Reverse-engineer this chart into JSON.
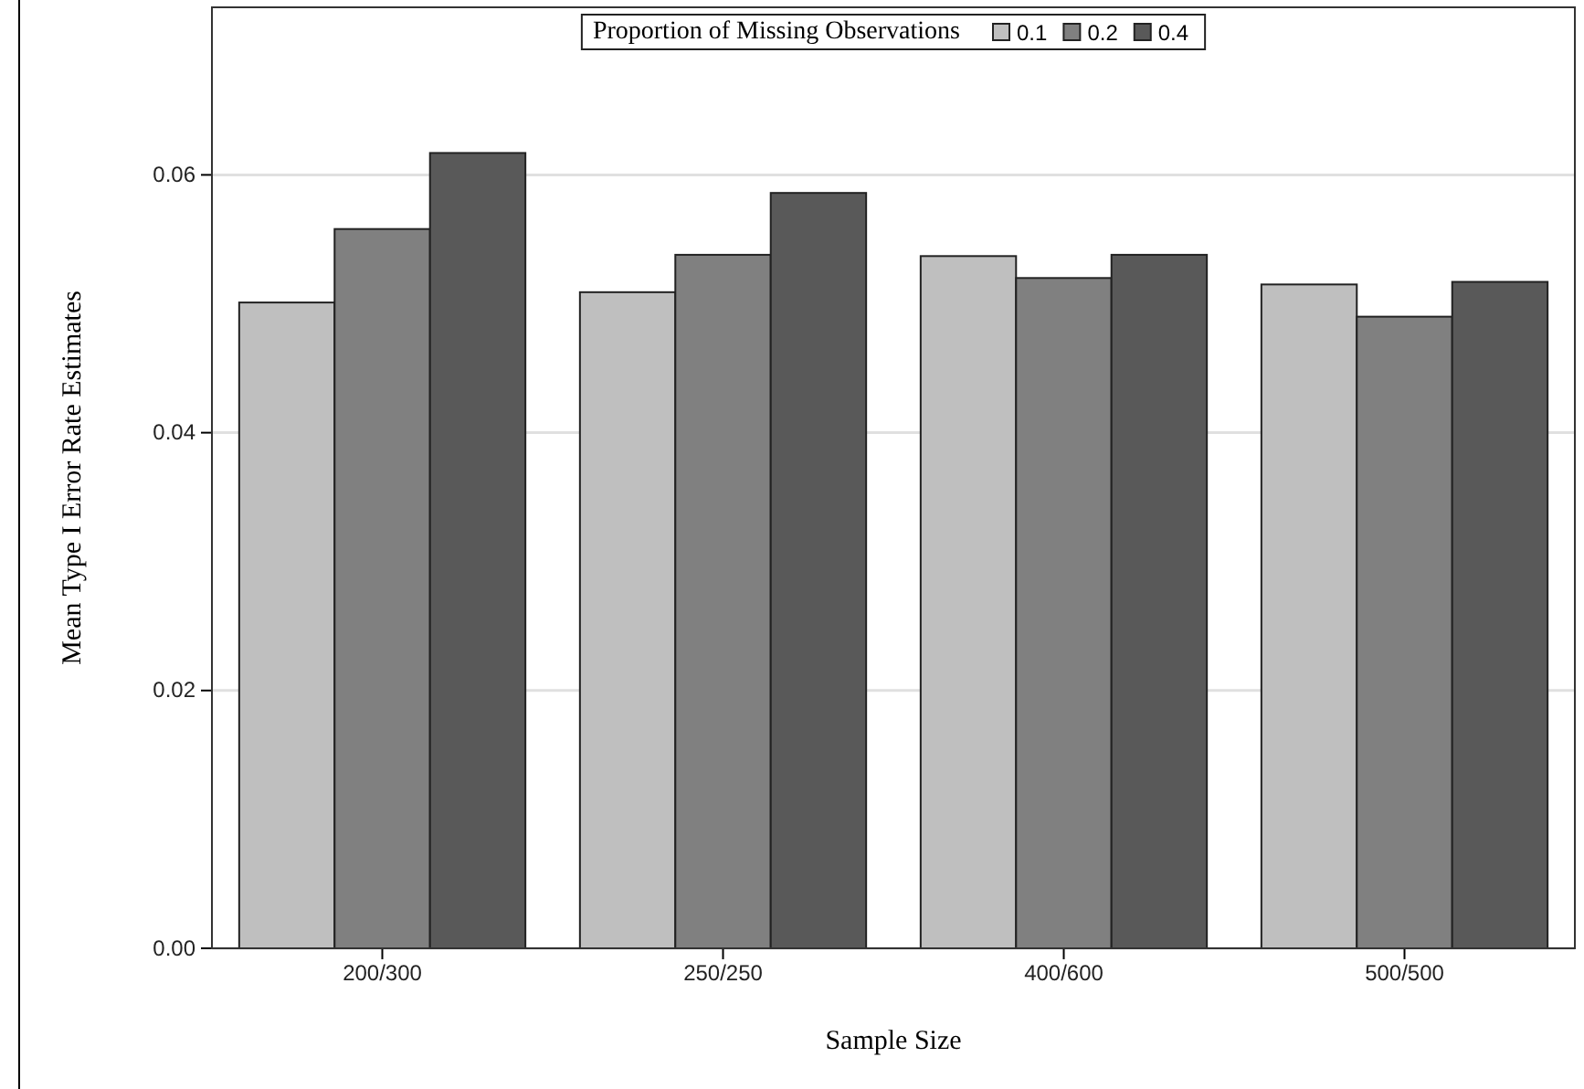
{
  "chart_data": {
    "type": "bar",
    "xlabel": "Sample Size",
    "ylabel": "Mean Type I Error Rate Estimates",
    "legend_title": "Proportion of Missing Observations",
    "categories": [
      "200/300",
      "250/250",
      "400/600",
      "500/500"
    ],
    "series": [
      {
        "name": "0.1",
        "color": "#bfbfbf",
        "values": [
          0.0501,
          0.0509,
          0.0537,
          0.0515
        ]
      },
      {
        "name": "0.2",
        "color": "#808080",
        "values": [
          0.0558,
          0.0538,
          0.052,
          0.049
        ]
      },
      {
        "name": "0.4",
        "color": "#595959",
        "values": [
          0.0617,
          0.0586,
          0.0538,
          0.0517
        ]
      }
    ],
    "ylim": [
      0,
      0.073
    ],
    "yticks": [
      {
        "value": 0,
        "label": "0.00"
      },
      {
        "value": 0.02,
        "label": "0.02"
      },
      {
        "value": 0.04,
        "label": "0.04"
      },
      {
        "value": 0.06,
        "label": "0.06"
      }
    ],
    "grid": "y",
    "legend": "top"
  }
}
